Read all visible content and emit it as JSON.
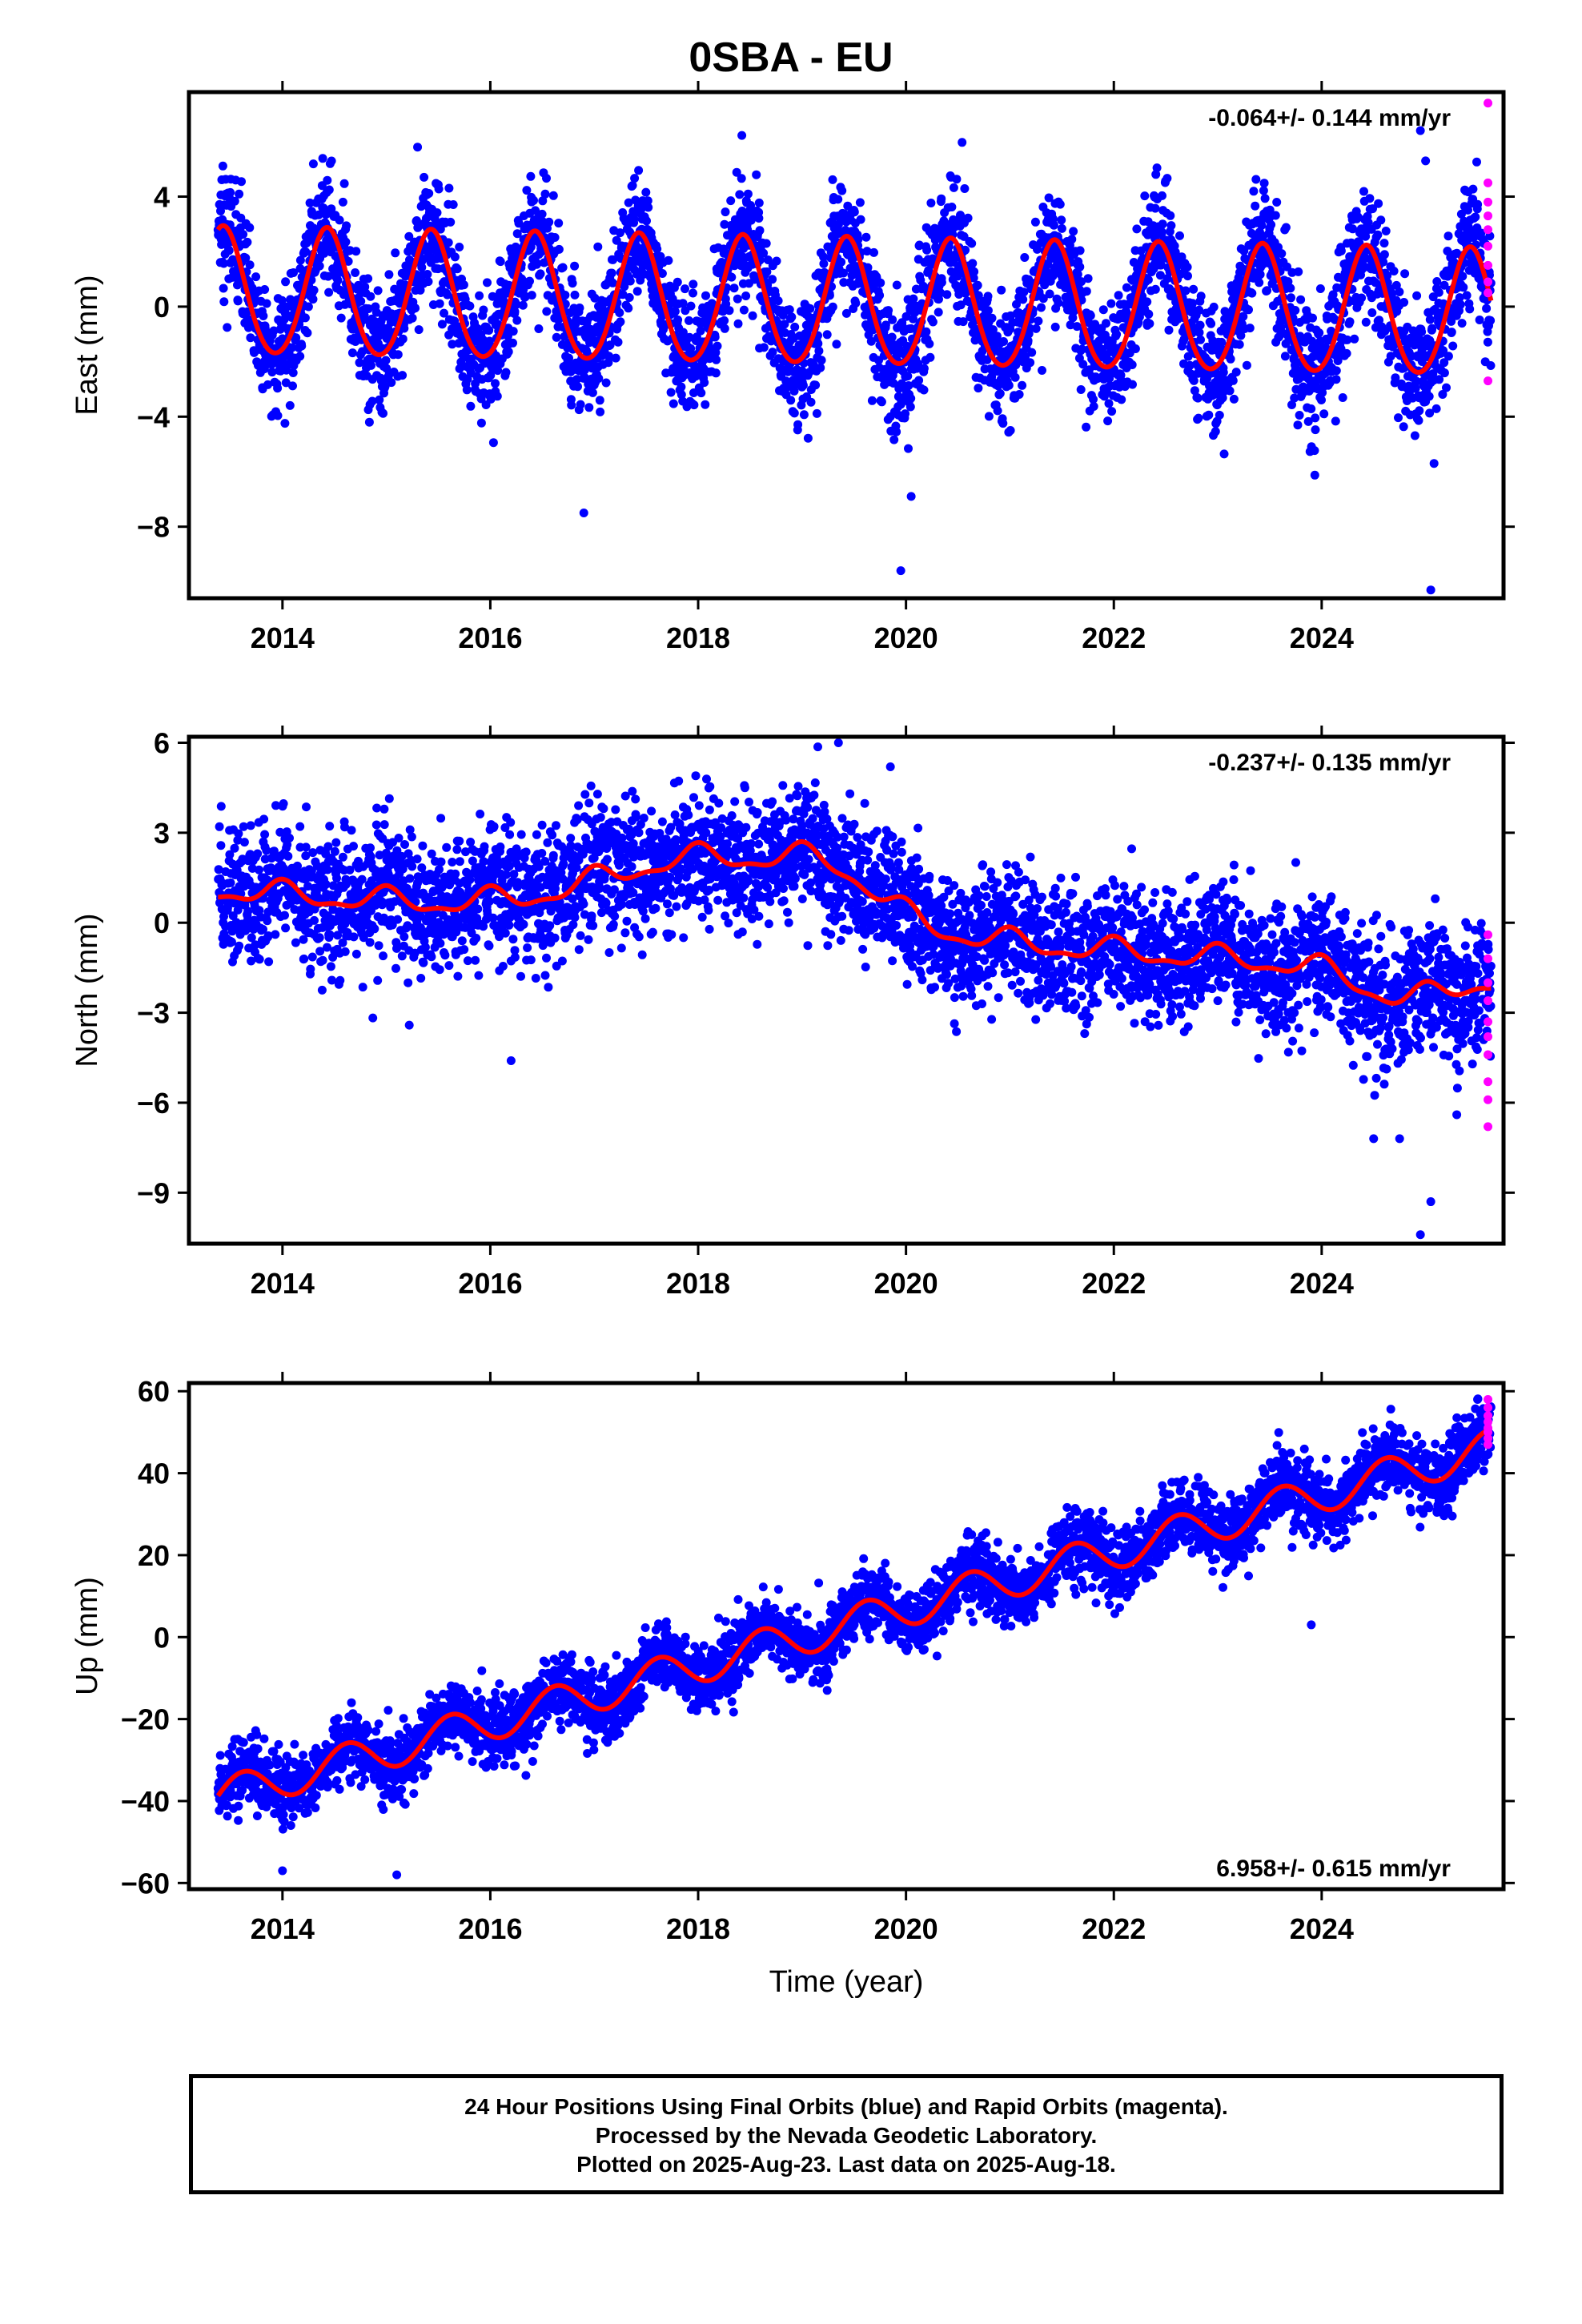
{
  "title": "0SBA - EU",
  "caption": [
    "24 Hour Positions Using Final Orbits (blue) and Rapid Orbits (magenta).",
    "Processed by the Nevada Geodetic Laboratory.",
    "Plotted on 2025-Aug-23. Last data on 2025-Aug-18."
  ],
  "colors": {
    "final": "#0000ff",
    "rapid": "#ff00ff",
    "model": "#ff0000",
    "frame": "#000000"
  },
  "chart_data": [
    {
      "type": "scatter",
      "ylabel": "East (mm)",
      "xlabel": "",
      "annotation": "-0.064+/- 0.144 mm/yr",
      "annotation_position": "top-right",
      "xlim": [
        2013.1,
        2025.75
      ],
      "ylim": [
        -10.6,
        7.8
      ],
      "xticks": [
        2014,
        2016,
        2018,
        2020,
        2022,
        2024
      ],
      "yticks": [
        4,
        0,
        -4,
        -8
      ],
      "ytick_labels": [
        "4",
        "0",
        "−4",
        "−8"
      ],
      "data_start": 2013.38,
      "data_end": 2025.63,
      "trend": {
        "intercept_at_start": 0.45,
        "slope_mm_per_yr": -0.064
      },
      "seasonal": {
        "amplitude_mm": 2.3,
        "peak_year_fraction": 0.43,
        "semiannual_amplitude_mm": 0.2
      },
      "scatter_sigma_mm": 1.1,
      "outliers": [
        [
          2019.95,
          -9.6
        ],
        [
          2020.05,
          -6.9
        ],
        [
          2025.05,
          -10.3
        ],
        [
          2024.95,
          6.4
        ],
        [
          2016.9,
          -7.5
        ],
        [
          2025.0,
          5.3
        ],
        [
          2015.3,
          5.8
        ]
      ],
      "series": [
        {
          "name": "Final Orbits",
          "color": "#0000ff",
          "role": "final"
        },
        {
          "name": "Rapid Orbits",
          "color": "#ff00ff",
          "role": "rapid",
          "points": [
            [
              2025.6,
              7.4
            ],
            [
              2025.6,
              4.5
            ],
            [
              2025.6,
              3.8
            ],
            [
              2025.6,
              3.3
            ],
            [
              2025.6,
              2.8
            ],
            [
              2025.6,
              2.2
            ],
            [
              2025.6,
              1.5
            ],
            [
              2025.6,
              0.9
            ],
            [
              2025.6,
              0.5
            ],
            [
              2025.6,
              -2.7
            ]
          ]
        },
        {
          "name": "Model",
          "color": "#ff0000",
          "role": "model"
        }
      ]
    },
    {
      "type": "scatter",
      "ylabel": "North (mm)",
      "xlabel": "",
      "annotation": "-0.237+/- 0.135 mm/yr",
      "annotation_position": "top-right",
      "xlim": [
        2013.1,
        2025.75
      ],
      "ylim": [
        -10.7,
        6.2
      ],
      "xticks": [
        2014,
        2016,
        2018,
        2020,
        2022,
        2024
      ],
      "yticks": [
        6,
        3,
        0,
        -3,
        -6,
        -9
      ],
      "ytick_labels": [
        "6",
        "3",
        "0",
        "−3",
        "−6",
        "−9"
      ],
      "data_start": 2013.38,
      "data_end": 2025.63,
      "trend": {
        "intercept_at_start": 1.1,
        "slope_mm_per_yr": -0.237
      },
      "bumps": [
        [
          2018.2,
          2.2,
          1.5
        ],
        [
          2019.3,
          1.0,
          0.6
        ],
        [
          2024.8,
          -0.9,
          0.6
        ]
      ],
      "seasonal": {
        "amplitude_mm": 0.35,
        "peak_year_fraction": 0.0,
        "semiannual_amplitude_mm": 0.15
      },
      "scatter_sigma_mm": 1.05,
      "outliers": [
        [
          2024.95,
          -10.4
        ],
        [
          2025.05,
          -9.3
        ],
        [
          2024.5,
          -7.2
        ],
        [
          2024.75,
          -7.2
        ],
        [
          2019.35,
          6.0
        ],
        [
          2019.85,
          5.2
        ],
        [
          2018.45,
          4.5
        ],
        [
          2016.2,
          -4.6
        ],
        [
          2025.3,
          -6.4
        ]
      ],
      "series": [
        {
          "name": "Final Orbits",
          "color": "#0000ff",
          "role": "final"
        },
        {
          "name": "Rapid Orbits",
          "color": "#ff00ff",
          "role": "rapid",
          "points": [
            [
              2025.6,
              -0.4
            ],
            [
              2025.6,
              -1.2
            ],
            [
              2025.6,
              -2.0
            ],
            [
              2025.6,
              -2.6
            ],
            [
              2025.6,
              -3.3
            ],
            [
              2025.6,
              -3.8
            ],
            [
              2025.6,
              -4.4
            ],
            [
              2025.6,
              -5.3
            ],
            [
              2025.6,
              -5.9
            ],
            [
              2025.6,
              -6.8
            ]
          ]
        },
        {
          "name": "Model",
          "color": "#ff0000",
          "role": "model"
        }
      ]
    },
    {
      "type": "scatter",
      "ylabel": "Up (mm)",
      "xlabel": "Time (year)",
      "annotation": "6.958+/- 0.615 mm/yr",
      "annotation_position": "bottom-right",
      "xlim": [
        2013.1,
        2025.75
      ],
      "ylim": [
        -61.5,
        62
      ],
      "xticks": [
        2014,
        2016,
        2018,
        2020,
        2022,
        2024
      ],
      "yticks": [
        60,
        40,
        20,
        0,
        -20,
        -40,
        -60
      ],
      "ytick_labels": [
        "60",
        "40",
        "20",
        "0",
        "−20",
        "−40",
        "−60"
      ],
      "data_start": 2013.38,
      "data_end": 2025.63,
      "trend": {
        "intercept_at_start": -39.0,
        "slope_mm_per_yr": 6.958
      },
      "seasonal": {
        "amplitude_mm": 4.5,
        "peak_year_fraction": 0.62,
        "semiannual_amplitude_mm": 0.0
      },
      "scatter_sigma_mm": 4.2,
      "outliers": [
        [
          2015.1,
          -58.0
        ],
        [
          2014.0,
          -57.0
        ],
        [
          2023.9,
          3.0
        ],
        [
          2025.5,
          58.0
        ]
      ],
      "series": [
        {
          "name": "Final Orbits",
          "color": "#0000ff",
          "role": "final"
        },
        {
          "name": "Rapid Orbits",
          "color": "#ff00ff",
          "role": "rapid",
          "points": [
            [
              2025.6,
              58.0
            ],
            [
              2025.6,
              56.0
            ],
            [
              2025.6,
              54.0
            ],
            [
              2025.6,
              52.5
            ],
            [
              2025.6,
              51.0
            ],
            [
              2025.6,
              50.0
            ],
            [
              2025.6,
              48.5
            ],
            [
              2025.6,
              47.0
            ]
          ]
        },
        {
          "name": "Model",
          "color": "#ff0000",
          "role": "model"
        }
      ]
    }
  ]
}
